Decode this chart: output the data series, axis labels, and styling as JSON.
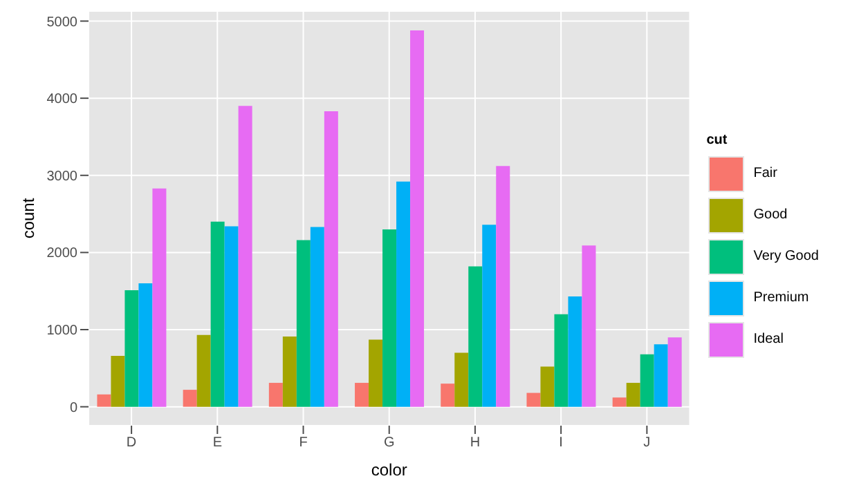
{
  "chart_data": {
    "type": "bar",
    "xlabel": "color",
    "ylabel": "count",
    "legend_title": "cut",
    "categories": [
      "D",
      "E",
      "F",
      "G",
      "H",
      "I",
      "J"
    ],
    "series": [
      {
        "name": "Fair",
        "color": "#f8766d",
        "values": [
          160,
          220,
          310,
          310,
          300,
          180,
          120
        ]
      },
      {
        "name": "Good",
        "color": "#a3a500",
        "values": [
          660,
          930,
          910,
          870,
          700,
          520,
          310
        ]
      },
      {
        "name": "Very Good",
        "color": "#00bf7d",
        "values": [
          1510,
          2400,
          2160,
          2300,
          1820,
          1200,
          680
        ]
      },
      {
        "name": "Premium",
        "color": "#00b0f6",
        "values": [
          1600,
          2340,
          2330,
          2920,
          2360,
          1430,
          810
        ]
      },
      {
        "name": "Ideal",
        "color": "#e76bf3",
        "values": [
          2830,
          3900,
          3830,
          4880,
          3120,
          2090,
          900
        ]
      }
    ],
    "ylim": [
      -245,
      5130
    ],
    "yticks": [
      0,
      1000,
      2000,
      3000,
      4000,
      5000
    ],
    "grid": true,
    "legend": "right"
  }
}
